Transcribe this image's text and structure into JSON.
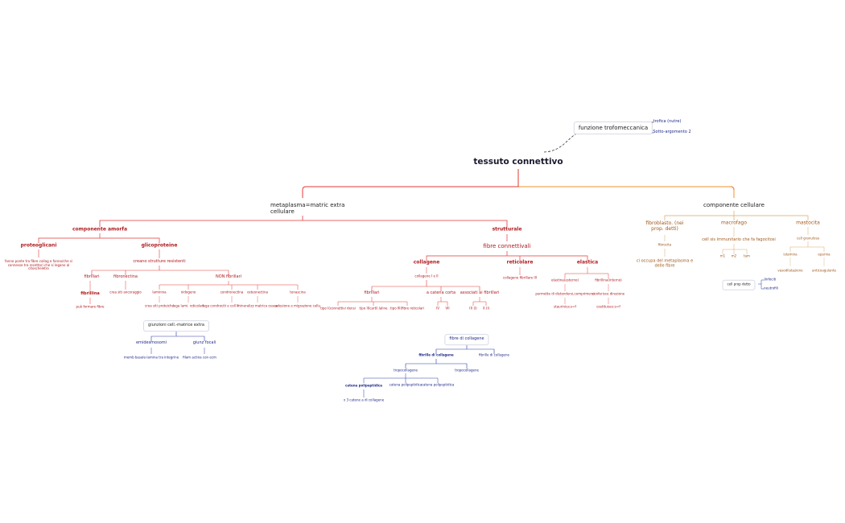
{
  "root": {
    "label": "tessuto connettivo"
  },
  "float_topic": {
    "label": "funzione trofomeccanica",
    "children": [
      "trofica (nutre)",
      "Sotto-argomento 2"
    ]
  },
  "matrice": {
    "label": "metaplasma=matric extra cellulare",
    "amorfa": {
      "label": "componente amorfa",
      "proteoglicani": {
        "label": "proteoglicani",
        "desc": "fanno ponte tra fibre collag e fanno/che si connesse tra recettori che si legano al citoscheletro"
      },
      "glicoproteine": {
        "label": "glicoproteine",
        "sub": "creano strutture resistenti",
        "fibrillari": {
          "label": "fibrillari",
          "fibrillina": "fibrillina",
          "note": "può formare fibre"
        },
        "fibronectina": {
          "label": "fibronectina",
          "note": "crea siti ancoraggio"
        },
        "non_fibrillari": {
          "label": "NON fibrillari",
          "items": [
            {
              "label": "laminina",
              "note": "crea siti proteiche"
            },
            {
              "label": "nidogeno",
              "note": "lega lami. reticolari"
            },
            {
              "label": "condronectina",
              "note": "lega condrociti e coll II"
            },
            {
              "label": "osteonectina",
              "note": "mineralizz matrice ossea"
            },
            {
              "label": "tenascina",
              "note": "adesione e migrazione cellu"
            }
          ]
        }
      },
      "giunzioni": {
        "label": "giunzioni cell.-matrice extra",
        "emidesmosomi": "emidesmosomi",
        "emid_note": "memb basale-lamina tra integrine",
        "giunz_focali": "giunz focali",
        "focali_note": "filam actina con ecm"
      }
    },
    "strutturale": {
      "label": "strutturale",
      "fibre": "fibre connettivali",
      "collagene": {
        "label": "collagene",
        "sub": "collagene I e II",
        "fibrillari": {
          "label": "fibrillari",
          "items": [
            "tipo I(connettivi densi",
            "tipo II(cartil.laline",
            "tipo III(fibre reticolari"
          ]
        },
        "catena_corta": {
          "label": "a catena corta",
          "items": [
            "IV",
            "VII"
          ]
        },
        "associati": {
          "label": "associati ai fibrillari",
          "items": [
            "IX (l)",
            "X (l)"
          ]
        }
      },
      "reticolare": {
        "label": "reticolare",
        "note": "collagene fibrillare III"
      },
      "elastica": {
        "label": "elastica",
        "elastina": {
          "label": "elastina(esterno)",
          "note": "permette di distendersi,comprimersi",
          "n2": "staurinica:s=f"
        },
        "fibrillina": {
          "label": "fibrillina(interno)",
          "note": "conferisce direzione",
          "n2": "costituisce:s=f"
        }
      }
    },
    "fibre_collagene": {
      "label": "fibre di collagene",
      "fibrille": "fibrille di collagene",
      "fibrille2": "fibrille di collagene",
      "tropocollagene": "tropocollagene",
      "tropocollagene2": "tropocollagene",
      "catene": [
        "catena polipeptidica",
        "catena polipeptidica",
        "catena polipeptidica"
      ],
      "note": "x 3 catene a di collagene"
    }
  },
  "cellulare": {
    "label": "componente cellulare",
    "fibroblasto": {
      "label": "fibroblasto. (nei prop. detti)",
      "fibrocita": "fibrocita",
      "note": "ci occupa del metaplasma e delle fibre"
    },
    "macrofago": {
      "label": "macrofago",
      "note": "cell sis immunitario che fa fagocitosi",
      "types": [
        "m1",
        "m2",
        "tam"
      ]
    },
    "mastocita": {
      "label": "mastocita",
      "sub": "cell granulosa",
      "istamina": "istamina",
      "istamina_note": "vasodilatazione",
      "eparina": "eparina",
      "eparina_note": "anticoagulante"
    },
    "cell_prop": {
      "label": "cell prop detto",
      "children": [
        "linfociti",
        "neutrofili"
      ]
    }
  },
  "colors": {
    "red": "#e23a36",
    "orange": "#f0902c",
    "tan": "#d9a86a",
    "blue": "#2b3aa8",
    "darkred": "#b0191e"
  }
}
